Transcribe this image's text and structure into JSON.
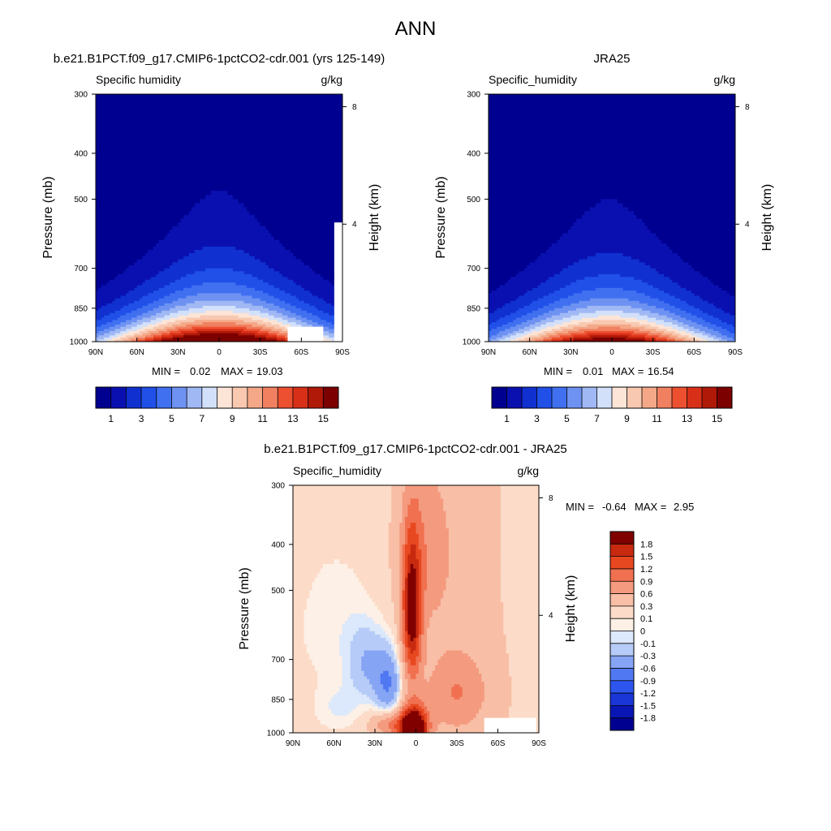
{
  "page": {
    "title": "ANN"
  },
  "chart_data": [
    {
      "type": "heatmap",
      "id": "model",
      "case_title": "b.e21.B1PCT.f09_g17.CMIP6-1pctCO2-cdr.001 (yrs 125-149)",
      "left_string": "Specific humidity",
      "right_string": "g/kg",
      "ylabel": "Pressure (mb)",
      "y2label": "Height (km)",
      "x_ticks": [
        "90N",
        "60N",
        "30N",
        "0",
        "30S",
        "60S",
        "90S"
      ],
      "y_ticks": [
        "300",
        "400",
        "500",
        "700",
        "850",
        "1000"
      ],
      "y2_ticks": [
        "8",
        "4"
      ],
      "stats": {
        "min_label": "MIN =",
        "min": "0.02",
        "max_label": "MAX =",
        "max": "19.03"
      },
      "colorbar": {
        "orientation": "horizontal",
        "colors": [
          "#000090",
          "#0a10b0",
          "#1030d0",
          "#2050e8",
          "#4070f0",
          "#6e92f2",
          "#a0b8f4",
          "#d2e0fa",
          "#fce4d6",
          "#f8c8b0",
          "#f4a888",
          "#f08060",
          "#ec5030",
          "#d83018",
          "#b01808",
          "#7c0000"
        ],
        "labels": [
          {
            "text": "1",
            "at": 1
          },
          {
            "text": "3",
            "at": 3
          },
          {
            "text": "5",
            "at": 5
          },
          {
            "text": "7",
            "at": 7
          },
          {
            "text": "9",
            "at": 9
          },
          {
            "text": "11",
            "at": 11
          },
          {
            "text": "13",
            "at": 13
          },
          {
            "text": "15",
            "at": 15
          }
        ]
      },
      "field": {
        "peak": 19.0,
        "peak_lat": 0,
        "base_width": 62,
        "top_width": 8,
        "decay": 1.45,
        "floor": 0.4,
        "masked": [
          {
            "lat0": -50,
            "lat1": -76,
            "p0": 930,
            "p1": 1000
          },
          {
            "lat0": -84,
            "lat1": -90,
            "p0": 560,
            "p1": 1000
          }
        ]
      }
    },
    {
      "type": "heatmap",
      "id": "obs",
      "case_title": "JRA25",
      "left_string": "Specific_humidity",
      "right_string": "g/kg",
      "ylabel": "Pressure (mb)",
      "y2label": "Height (km)",
      "x_ticks": [
        "90N",
        "60N",
        "30N",
        "0",
        "30S",
        "60S",
        "90S"
      ],
      "y_ticks": [
        "300",
        "400",
        "500",
        "700",
        "850",
        "1000"
      ],
      "y2_ticks": [
        "8",
        "4"
      ],
      "stats": {
        "min_label": "MIN =",
        "min": "0.01",
        "max_label": "MAX =",
        "max": "16.54"
      },
      "colorbar": {
        "orientation": "horizontal",
        "colors": [
          "#000090",
          "#0a10b0",
          "#1030d0",
          "#2050e8",
          "#4070f0",
          "#6e92f2",
          "#a0b8f4",
          "#d2e0fa",
          "#fce4d6",
          "#f8c8b0",
          "#f4a888",
          "#f08060",
          "#ec5030",
          "#d83018",
          "#b01808",
          "#7c0000"
        ],
        "labels": [
          {
            "text": "1",
            "at": 1
          },
          {
            "text": "3",
            "at": 3
          },
          {
            "text": "5",
            "at": 5
          },
          {
            "text": "7",
            "at": 7
          },
          {
            "text": "9",
            "at": 9
          },
          {
            "text": "11",
            "at": 11
          },
          {
            "text": "13",
            "at": 13
          },
          {
            "text": "15",
            "at": 15
          }
        ]
      },
      "field": {
        "peak": 16.5,
        "peak_lat": 2,
        "base_width": 60,
        "top_width": 8,
        "decay": 1.45,
        "floor": 0.4,
        "masked": []
      }
    },
    {
      "type": "heatmap",
      "id": "diff",
      "case_title": "b.e21.B1PCT.f09_g17.CMIP6-1pctCO2-cdr.001 - JRA25",
      "left_string": "Specific_humidity",
      "right_string": "g/kg",
      "ylabel": "Pressure (mb)",
      "y2label": "Height (km)",
      "x_ticks": [
        "90N",
        "60N",
        "30N",
        "0",
        "30S",
        "60S",
        "90S"
      ],
      "y_ticks": [
        "300",
        "400",
        "500",
        "700",
        "850",
        "1000"
      ],
      "y2_ticks": [
        "8",
        "4"
      ],
      "stats": {
        "min_label": "MIN =",
        "min": "-0.64",
        "max_label": "MAX =",
        "max": "2.95"
      },
      "colorbar": {
        "orientation": "vertical",
        "colors": [
          "#000090",
          "#0a16b4",
          "#1a36d6",
          "#2c56ee",
          "#5078f2",
          "#86a4f4",
          "#b6cbf7",
          "#dce8fb",
          "#fdf0e6",
          "#fcdcc8",
          "#f8bea6",
          "#f49a7e",
          "#f07050",
          "#e84820",
          "#c82a10",
          "#800000"
        ],
        "labels": [
          {
            "text": "-1.8",
            "at": -1.8
          },
          {
            "text": "-1.5",
            "at": -1.5
          },
          {
            "text": "-1.2",
            "at": -1.2
          },
          {
            "text": "-0.9",
            "at": -0.9
          },
          {
            "text": "-0.6",
            "at": -0.6
          },
          {
            "text": "-0.3",
            "at": -0.3
          },
          {
            "text": "-0.1",
            "at": -0.1
          },
          {
            "text": "0",
            "at": 0
          },
          {
            "text": "0.1",
            "at": 0.1
          },
          {
            "text": "0.3",
            "at": 0.3
          },
          {
            "text": "0.6",
            "at": 0.6
          },
          {
            "text": "0.9",
            "at": 0.9
          },
          {
            "text": "1.2",
            "at": 1.2
          },
          {
            "text": "1.5",
            "at": 1.5
          },
          {
            "text": "1.8",
            "at": 1.8
          }
        ]
      },
      "field": {
        "masked": [
          {
            "lat0": -50,
            "lat1": -88,
            "p0": 935,
            "p1": 1000
          }
        ]
      }
    }
  ]
}
